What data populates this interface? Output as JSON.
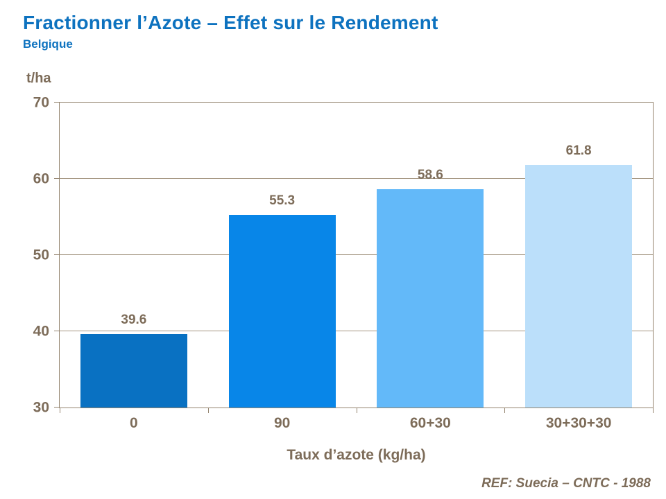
{
  "header": {
    "title": "Fractionner l’Azote – Effet sur le Rendement",
    "subtitle": "Belgique"
  },
  "chart_data": {
    "type": "bar",
    "categories": [
      "0",
      "90",
      "60+30",
      "30+30+30"
    ],
    "values": [
      39.6,
      55.3,
      58.6,
      61.8
    ],
    "value_labels": [
      "39.6",
      "55.3",
      "58.6",
      "61.8"
    ],
    "bar_colors": [
      "#0971C2",
      "#0886E8",
      "#63B9F9",
      "#BBDFFA"
    ],
    "title": "",
    "xlabel": "Taux d’azote (kg/ha)",
    "ylabel": "t/ha",
    "ylim": [
      30,
      70
    ],
    "yticks": [
      30,
      40,
      50,
      60,
      70
    ],
    "grid": true,
    "legend": false
  },
  "footer": {
    "reference": "REF: Suecia – CNTC - 1988"
  },
  "colors": {
    "title_blue": "#0D72BF",
    "axis_text": "#7D6C59",
    "grid": "#A3947F",
    "axis_line": "#94846F"
  }
}
